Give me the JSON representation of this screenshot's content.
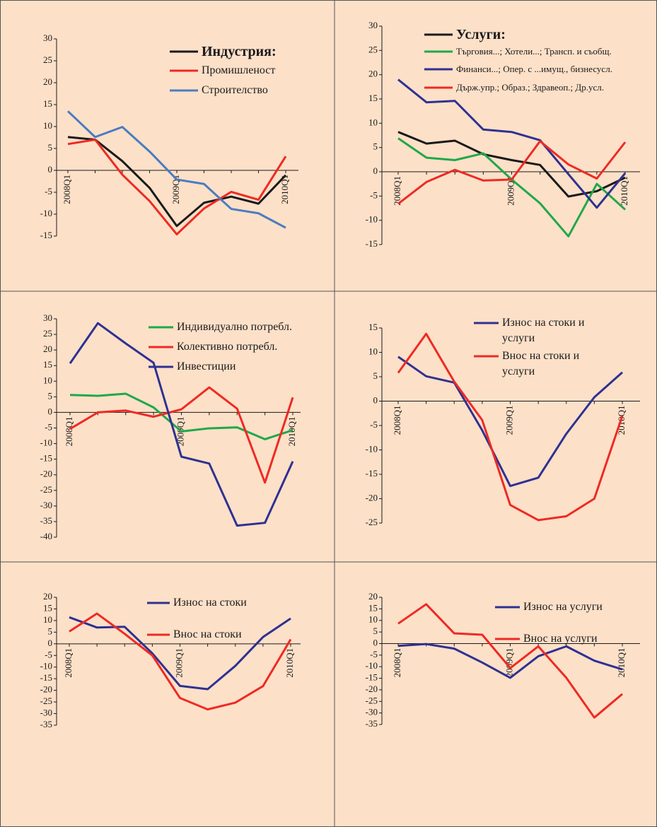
{
  "chart_data": [
    {
      "type": "line",
      "categories": [
        "2008Q1",
        null,
        null,
        null,
        "2009Q1",
        null,
        null,
        null,
        "2010Q1"
      ],
      "ylim": [
        -15,
        30
      ],
      "yticks": [
        -15,
        -10,
        -5,
        0,
        5,
        10,
        15,
        20,
        25,
        30
      ],
      "series": [
        {
          "name": "Индустрия:",
          "color": "#1a1a1a",
          "values": [
            7.6,
            7.0,
            2.1,
            -4.0,
            -12.7,
            -7.4,
            -6.0,
            -7.6,
            -1.1
          ]
        },
        {
          "name": "Промишленост",
          "color": "#ee2a24",
          "values": [
            6.0,
            7.0,
            -1.0,
            -7.0,
            -14.6,
            -8.7,
            -4.9,
            -6.7,
            3.2
          ]
        },
        {
          "name": "Строителство",
          "color": "#4a7cc0",
          "values": [
            13.5,
            7.6,
            9.9,
            4.3,
            -2.1,
            -3.1,
            -8.8,
            -9.8,
            -13.1
          ]
        }
      ]
    },
    {
      "type": "line",
      "categories": [
        "2008Q1",
        null,
        null,
        null,
        "2009Q1",
        null,
        null,
        null,
        "2010Q1"
      ],
      "ylim": [
        -15,
        30
      ],
      "yticks": [
        -15,
        -10,
        -5,
        0,
        5,
        10,
        15,
        20,
        25,
        30
      ],
      "series": [
        {
          "name": "Услуги:",
          "color": "#1a1a1a",
          "values": [
            8.2,
            5.8,
            6.4,
            3.6,
            2.4,
            1.4,
            -5.1,
            -4.0,
            -1.2
          ]
        },
        {
          "name": "Търговия...; Хотели...; Трансп. и съобщ.",
          "color": "#1fa84a",
          "values": [
            6.9,
            2.9,
            2.4,
            3.8,
            -1.6,
            -6.5,
            -13.3,
            -2.5,
            -7.8
          ]
        },
        {
          "name": "Финанси...; Опер. с ...имущ., бизнесусл.",
          "color": "#2e3192",
          "values": [
            19.0,
            14.3,
            14.6,
            8.7,
            8.2,
            6.5,
            -0.5,
            -7.4,
            -0.3
          ]
        },
        {
          "name": "Държ.упр.; Образ.; Здравеоп.; Др.усл.",
          "color": "#ee2a24",
          "values": [
            -6.6,
            -2.1,
            0.4,
            -1.8,
            -1.6,
            6.3,
            1.5,
            -1.4,
            6.1
          ]
        }
      ]
    },
    {
      "type": "line",
      "categories": [
        "2008Q1",
        null,
        null,
        null,
        "2009Q1",
        null,
        null,
        null,
        "2010Q1"
      ],
      "ylim": [
        -40,
        30
      ],
      "yticks": [
        -40,
        -35,
        -30,
        -25,
        -20,
        -15,
        -10,
        -5,
        0,
        5,
        10,
        15,
        20,
        25,
        30
      ],
      "series": [
        {
          "name": "Индивидуално потребл.",
          "color": "#1fa84a",
          "values": [
            5.6,
            5.3,
            6.0,
            1.6,
            -6.1,
            -5.1,
            -4.8,
            -8.6,
            -5.7
          ]
        },
        {
          "name": "Колективно потребл.",
          "color": "#ee2a24",
          "values": [
            -5.3,
            0,
            0.6,
            -1.4,
            1.0,
            8.0,
            1.2,
            -22.5,
            4.8
          ]
        },
        {
          "name": "Инвестиции",
          "color": "#2e3192",
          "values": [
            15.7,
            28.6,
            22.1,
            15.9,
            -14.2,
            -16.4,
            -36.3,
            -35.4,
            -15.7
          ]
        }
      ]
    },
    {
      "type": "line",
      "categories": [
        "2008Q1",
        null,
        null,
        null,
        "2009Q1",
        null,
        null,
        null,
        "2010Q1"
      ],
      "ylim": [
        -25,
        15
      ],
      "yticks": [
        -25,
        -20,
        -15,
        -10,
        -5,
        0,
        5,
        10,
        15
      ],
      "series": [
        {
          "name": "Износ на стоки и услуги",
          "color": "#2e3192",
          "values": [
            9.1,
            5.1,
            3.8,
            -6.0,
            -17.4,
            -15.7,
            -6.7,
            0.8,
            5.9
          ]
        },
        {
          "name": "Внос на стоки и услуги",
          "color": "#ee2a24",
          "values": [
            5.8,
            13.8,
            4.0,
            -3.9,
            -21.3,
            -24.4,
            -23.6,
            -20.0,
            -3.0
          ]
        }
      ]
    },
    {
      "type": "line",
      "categories": [
        "2008Q1",
        null,
        null,
        null,
        "2009Q1",
        null,
        null,
        null,
        "2010Q1"
      ],
      "ylim": [
        -35,
        20
      ],
      "yticks": [
        -35,
        -30,
        -25,
        -20,
        -15,
        -10,
        -5,
        0,
        5,
        10,
        15,
        20
      ],
      "series": [
        {
          "name": "Износ на стоки",
          "color": "#2e3192",
          "values": [
            11.4,
            7.0,
            7.3,
            -4.1,
            -18.1,
            -19.5,
            -9.5,
            2.9,
            10.9
          ]
        },
        {
          "name": "Внос на стоки",
          "color": "#ee2a24",
          "values": [
            5.3,
            13.0,
            4.3,
            -5.0,
            -23.3,
            -28.2,
            -25.3,
            -18.2,
            1.9
          ]
        }
      ]
    },
    {
      "type": "line",
      "categories": [
        "2008Q1",
        null,
        null,
        null,
        "2009Q1",
        null,
        null,
        null,
        "2010Q1"
      ],
      "ylim": [
        -35,
        20
      ],
      "yticks": [
        -35,
        -30,
        -25,
        -20,
        -15,
        -10,
        -5,
        0,
        5,
        10,
        15,
        20
      ],
      "series": [
        {
          "name": "Износ на услуги",
          "color": "#2e3192",
          "values": [
            -1.0,
            -0.2,
            -2.2,
            -8.2,
            -14.8,
            -5.5,
            -1.2,
            -7.4,
            -11.2
          ]
        },
        {
          "name": "Внос на услуги",
          "color": "#ee2a24",
          "values": [
            8.6,
            17.0,
            4.4,
            3.8,
            -10.6,
            -1.2,
            -14.8,
            -32.0,
            -21.8
          ]
        }
      ]
    }
  ]
}
